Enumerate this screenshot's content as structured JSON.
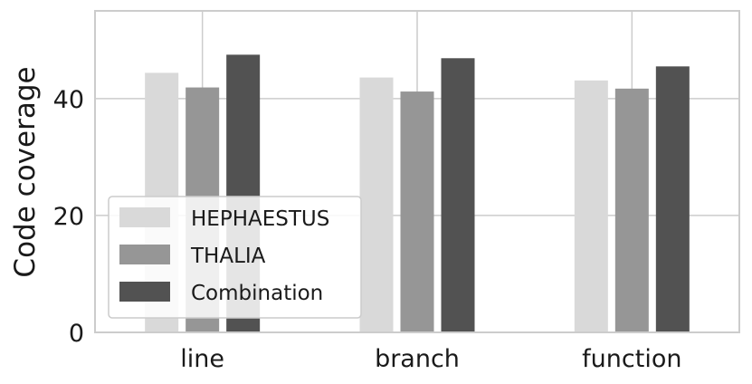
{
  "chart_data": {
    "type": "bar",
    "title": "",
    "xlabel": "",
    "ylabel": "Code coverage",
    "categories": [
      "line",
      "branch",
      "function"
    ],
    "series": [
      {
        "name": "HEPHAESTUS",
        "color": "#d9d9d9",
        "values": [
          44.4,
          43.6,
          43.1
        ]
      },
      {
        "name": "THALIA",
        "color": "#969696",
        "values": [
          41.9,
          41.2,
          41.7
        ]
      },
      {
        "name": "Combination",
        "color": "#525252",
        "values": [
          47.5,
          46.9,
          45.5
        ]
      }
    ],
    "ylim": [
      0,
      55
    ],
    "yticks": [
      0,
      20,
      40
    ],
    "grid": true,
    "legend_position": "lower-left"
  }
}
